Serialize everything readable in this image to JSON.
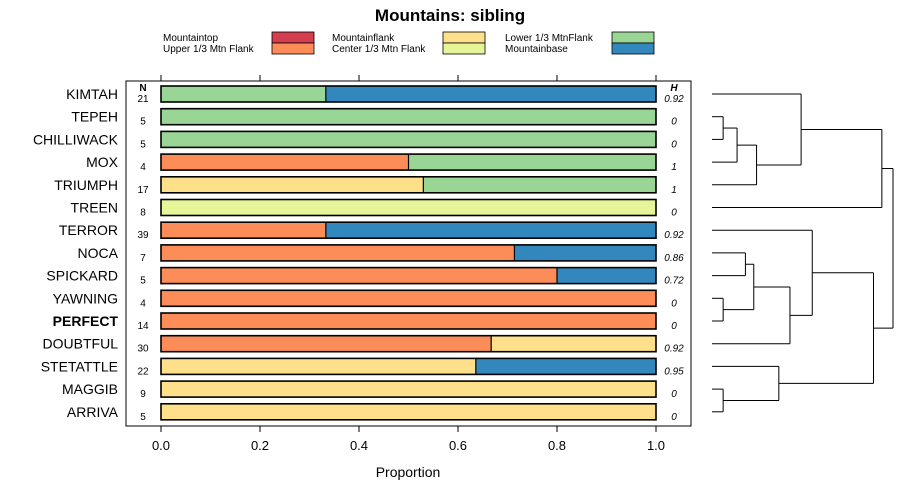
{
  "chart_data": {
    "type": "bar",
    "stacked": true,
    "orientation": "horizontal",
    "title": "Mountains: sibling",
    "xlabel": "Proportion",
    "xlim": [
      0,
      1
    ],
    "x_ticks": [
      "0.0",
      "0.2",
      "0.4",
      "0.6",
      "0.8",
      "1.0"
    ],
    "x_tick_values": [
      0,
      0.2,
      0.4,
      0.6,
      0.8,
      1.0
    ],
    "column_headers": {
      "n": "N",
      "h": "H"
    },
    "legend": [
      {
        "name": "Mountaintop",
        "color": "#d53e4f"
      },
      {
        "name": "Upper 1/3 Mtn Flank",
        "color": "#fc8d59"
      },
      {
        "name": "Mountainflank",
        "color": "#fee08b"
      },
      {
        "name": "Center 1/3 Mtn Flank",
        "color": "#e6f598"
      },
      {
        "name": "Lower 1/3 MtnFlank",
        "color": "#99d594"
      },
      {
        "name": "Mountainbase",
        "color": "#3288bd"
      }
    ],
    "categories": [
      {
        "label": "KIMTAH",
        "n": "21",
        "h": "0.92",
        "bold": false,
        "segments": [
          [
            "Lower 1/3 MtnFlank",
            0.333
          ],
          [
            "Mountainbase",
            0.667
          ]
        ]
      },
      {
        "label": "TEPEH",
        "n": "5",
        "h": "0",
        "bold": false,
        "segments": [
          [
            "Lower 1/3 MtnFlank",
            1.0
          ]
        ]
      },
      {
        "label": "CHILLIWACK",
        "n": "5",
        "h": "0",
        "bold": false,
        "segments": [
          [
            "Lower 1/3 MtnFlank",
            1.0
          ]
        ]
      },
      {
        "label": "MOX",
        "n": "4",
        "h": "1",
        "bold": false,
        "segments": [
          [
            "Upper 1/3 Mtn Flank",
            0.5
          ],
          [
            "Lower 1/3 MtnFlank",
            0.5
          ]
        ]
      },
      {
        "label": "TRIUMPH",
        "n": "17",
        "h": "1",
        "bold": false,
        "segments": [
          [
            "Mountainflank",
            0.53
          ],
          [
            "Lower 1/3 MtnFlank",
            0.47
          ]
        ]
      },
      {
        "label": "TREEN",
        "n": "8",
        "h": "0",
        "bold": false,
        "segments": [
          [
            "Center 1/3 Mtn Flank",
            1.0
          ]
        ]
      },
      {
        "label": "TERROR",
        "n": "39",
        "h": "0.92",
        "bold": false,
        "segments": [
          [
            "Upper 1/3 Mtn Flank",
            0.333
          ],
          [
            "Mountainbase",
            0.667
          ]
        ]
      },
      {
        "label": "NOCA",
        "n": "7",
        "h": "0.86",
        "bold": false,
        "segments": [
          [
            "Upper 1/3 Mtn Flank",
            0.714
          ],
          [
            "Mountainbase",
            0.286
          ]
        ]
      },
      {
        "label": "SPICKARD",
        "n": "5",
        "h": "0.72",
        "bold": false,
        "segments": [
          [
            "Upper 1/3 Mtn Flank",
            0.8
          ],
          [
            "Mountainbase",
            0.2
          ]
        ]
      },
      {
        "label": "YAWNING",
        "n": "4",
        "h": "0",
        "bold": false,
        "segments": [
          [
            "Upper 1/3 Mtn Flank",
            1.0
          ]
        ]
      },
      {
        "label": "PERFECT",
        "n": "14",
        "h": "0",
        "bold": true,
        "segments": [
          [
            "Upper 1/3 Mtn Flank",
            1.0
          ]
        ]
      },
      {
        "label": "DOUBTFUL",
        "n": "30",
        "h": "0.92",
        "bold": false,
        "segments": [
          [
            "Upper 1/3 Mtn Flank",
            0.667
          ],
          [
            "Mountainflank",
            0.333
          ]
        ]
      },
      {
        "label": "STETATTLE",
        "n": "22",
        "h": "0.95",
        "bold": false,
        "segments": [
          [
            "Mountainflank",
            0.636
          ],
          [
            "Mountainbase",
            0.364
          ]
        ]
      },
      {
        "label": "MAGGIB",
        "n": "9",
        "h": "0",
        "bold": false,
        "segments": [
          [
            "Mountainflank",
            1.0
          ]
        ]
      },
      {
        "label": "ARRIVA",
        "n": "5",
        "h": "0",
        "bold": false,
        "segments": [
          [
            "Mountainflank",
            1.0
          ]
        ]
      }
    ],
    "dendrogram": {
      "orientation": "leaves-left",
      "merges": [
        [
          1,
          2,
          0.04
        ],
        [
          9,
          10,
          0.04
        ],
        [
          13,
          14,
          0.04
        ],
        [
          -1,
          3,
          0.09
        ],
        [
          7,
          8,
          0.12
        ],
        [
          -5,
          -2,
          0.15
        ],
        [
          -4,
          4,
          0.16
        ],
        [
          -3,
          12,
          0.24
        ],
        [
          -6,
          11,
          0.28
        ],
        [
          0,
          -7,
          0.32
        ],
        [
          6,
          -9,
          0.36
        ],
        [
          -11,
          -8,
          0.58
        ],
        [
          -10,
          5,
          0.61
        ],
        [
          -13,
          -12,
          0.65
        ]
      ]
    }
  }
}
